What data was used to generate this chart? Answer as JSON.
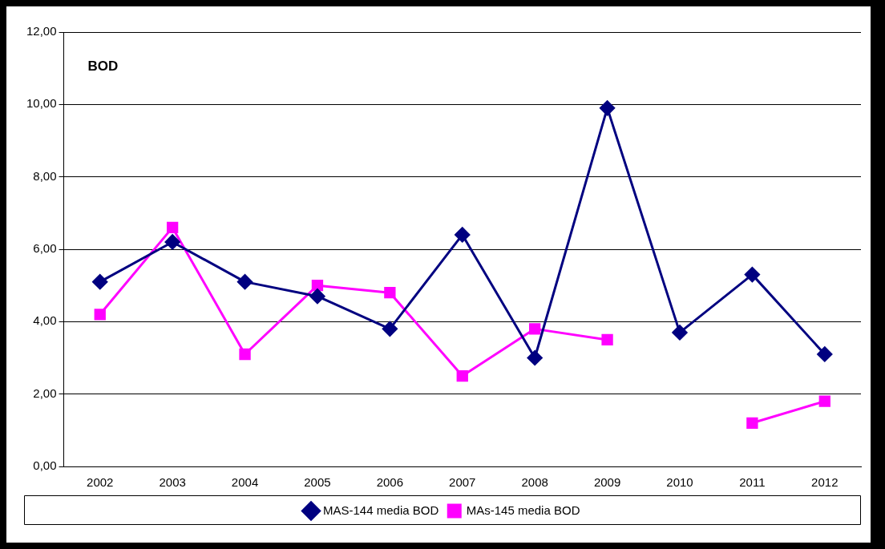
{
  "chart_data": {
    "type": "line",
    "title": "BOD",
    "categories": [
      "2002",
      "2003",
      "2004",
      "2005",
      "2006",
      "2007",
      "2008",
      "2009",
      "2010",
      "2011",
      "2012"
    ],
    "series": [
      {
        "name": "MAS-144 media BOD",
        "color": "#000080",
        "marker": "diamond",
        "values": [
          5.1,
          6.2,
          5.1,
          4.7,
          3.8,
          6.4,
          3.0,
          9.9,
          3.7,
          5.3,
          3.1
        ]
      },
      {
        "name": "MAs-145 media BOD",
        "color": "#ff00ff",
        "marker": "square",
        "values": [
          4.2,
          6.6,
          3.1,
          5.0,
          4.8,
          2.5,
          3.8,
          3.5,
          null,
          1.2,
          1.8
        ]
      }
    ],
    "ylim": [
      0,
      12
    ],
    "yticks": [
      {
        "value": 0,
        "label": "0,00"
      },
      {
        "value": 2,
        "label": "2,00"
      },
      {
        "value": 4,
        "label": "4,00"
      },
      {
        "value": 6,
        "label": "6,00"
      },
      {
        "value": 8,
        "label": "8,00"
      },
      {
        "value": 10,
        "label": "10,00"
      },
      {
        "value": 12,
        "label": "12,00"
      }
    ],
    "grid": "y",
    "legend": "bottom",
    "line_style": "solid"
  }
}
